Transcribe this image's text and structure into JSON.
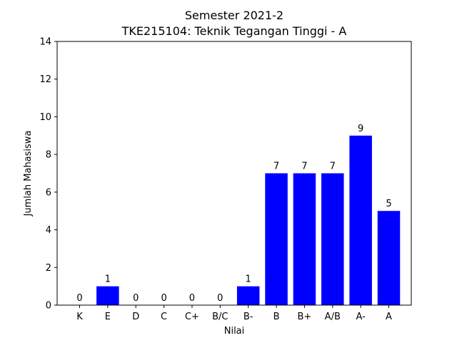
{
  "chart_data": {
    "type": "bar",
    "title_lines": [
      "Semester 2021-2",
      "TKE215104: Teknik Tegangan Tinggi - A"
    ],
    "xlabel": "Nilai",
    "ylabel": "Jumlah Mahasiswa",
    "categories": [
      "K",
      "E",
      "D",
      "C",
      "C+",
      "B/C",
      "B-",
      "B",
      "B+",
      "A/B",
      "A-",
      "A"
    ],
    "values": [
      0,
      1,
      0,
      0,
      0,
      0,
      1,
      7,
      7,
      7,
      9,
      5
    ],
    "ylim": [
      0,
      14
    ],
    "yticks": [
      0,
      2,
      4,
      6,
      8,
      10,
      12,
      14
    ],
    "bar_color": "#0000ff",
    "grid": false,
    "legend": "none",
    "show_value_labels": true
  }
}
